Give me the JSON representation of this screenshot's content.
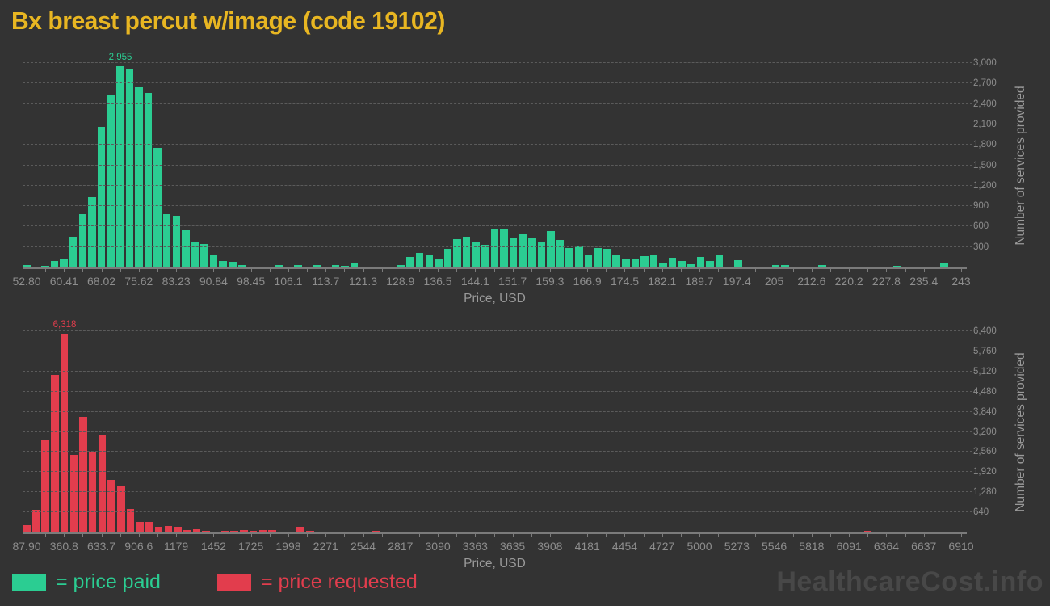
{
  "title": "Bx breast percut w/image (code 19102)",
  "watermark": "HealthcareCost.info",
  "legend": {
    "paid_label": "= price paid",
    "requested_label": "= price requested"
  },
  "colors": {
    "background": "#333333",
    "title": "#e8b622",
    "paid": "#2bcd92",
    "requested": "#e23d4d",
    "axis_text": "#8d8d8d",
    "axis_title_text": "#9a9a9a",
    "gridline": "#5b5b5b",
    "watermark": "#484848"
  },
  "chart_data": [
    {
      "type": "bar",
      "name": "price-paid-histogram",
      "series_label": "price paid",
      "color_key": "paid",
      "xlabel": "Price, USD",
      "ylabel": "Number of services provided",
      "grid": true,
      "legend_position": "bottom-left",
      "x_tick_labels": [
        "52.80",
        "60.41",
        "68.02",
        "75.62",
        "83.23",
        "90.84",
        "98.45",
        "106.1",
        "113.7",
        "121.3",
        "128.9",
        "136.5",
        "144.1",
        "151.7",
        "159.3",
        "166.9",
        "174.5",
        "182.1",
        "189.7",
        "197.4",
        "205",
        "212.6",
        "220.2",
        "227.8",
        "235.4",
        "243"
      ],
      "y_tick_labels": [
        "300",
        "600",
        "900",
        "1,200",
        "1,500",
        "1,800",
        "2,100",
        "2,400",
        "2,700",
        "3,000"
      ],
      "y_tick_values": [
        300,
        600,
        900,
        1200,
        1500,
        1800,
        2100,
        2400,
        2700,
        3000
      ],
      "y_axis_max": 3000,
      "xlim": [
        52.8,
        243
      ],
      "bin_width_usd": 1.9,
      "peak_label": "2,955",
      "peak_index": 10,
      "values": [
        30,
        0,
        20,
        100,
        130,
        455,
        780,
        1035,
        2060,
        2520,
        2955,
        2920,
        2650,
        2560,
        1750,
        780,
        760,
        545,
        370,
        340,
        190,
        100,
        80,
        30,
        0,
        0,
        0,
        30,
        0,
        30,
        0,
        30,
        0,
        30,
        20,
        55,
        0,
        0,
        0,
        0,
        30,
        150,
        210,
        175,
        120,
        270,
        415,
        445,
        385,
        330,
        565,
        575,
        440,
        485,
        425,
        380,
        535,
        405,
        290,
        320,
        180,
        290,
        270,
        195,
        125,
        125,
        165,
        195,
        75,
        140,
        100,
        45,
        155,
        90,
        180,
        0,
        110,
        0,
        0,
        0,
        40,
        30,
        0,
        0,
        0,
        40,
        0,
        0,
        0,
        0,
        0,
        0,
        0,
        25,
        0,
        0,
        0,
        0,
        65,
        0,
        0
      ]
    },
    {
      "type": "bar",
      "name": "price-requested-histogram",
      "series_label": "price requested",
      "color_key": "requested",
      "xlabel": "Price, USD",
      "ylabel": "Number of services provided",
      "grid": true,
      "legend_position": "bottom-left",
      "x_tick_labels": [
        "87.90",
        "360.8",
        "633.7",
        "906.6",
        "1179",
        "1452",
        "1725",
        "1998",
        "2271",
        "2544",
        "2817",
        "3090",
        "3363",
        "3635",
        "3908",
        "4181",
        "4454",
        "4727",
        "5000",
        "5273",
        "5546",
        "5818",
        "6091",
        "6364",
        "6637",
        "6910"
      ],
      "y_tick_labels": [
        "640",
        "1,280",
        "1,920",
        "2,560",
        "3,200",
        "3,840",
        "4,480",
        "5,120",
        "5,760",
        "6,400"
      ],
      "y_tick_values": [
        640,
        1280,
        1920,
        2560,
        3200,
        3840,
        4480,
        5120,
        5760,
        6400
      ],
      "y_axis_max": 6400,
      "xlim": [
        87.9,
        6910
      ],
      "bin_width_usd": 68.2,
      "peak_label": "6,318",
      "peak_index": 4,
      "values": [
        230,
        710,
        2930,
        5020,
        6318,
        2460,
        3670,
        2540,
        3110,
        1680,
        1480,
        750,
        340,
        340,
        170,
        195,
        170,
        85,
        100,
        35,
        0,
        25,
        25,
        70,
        45,
        85,
        85,
        0,
        0,
        170,
        45,
        0,
        0,
        0,
        0,
        0,
        0,
        50,
        0,
        0,
        0,
        0,
        0,
        0,
        0,
        0,
        0,
        0,
        0,
        0,
        0,
        0,
        0,
        0,
        0,
        0,
        0,
        0,
        0,
        0,
        0,
        0,
        0,
        0,
        0,
        0,
        0,
        0,
        0,
        0,
        0,
        0,
        0,
        0,
        0,
        0,
        0,
        0,
        0,
        0,
        0,
        0,
        0,
        0,
        0,
        0,
        0,
        0,
        0,
        30,
        0,
        0,
        0,
        0,
        0,
        0,
        0,
        0,
        0,
        0
      ]
    }
  ]
}
